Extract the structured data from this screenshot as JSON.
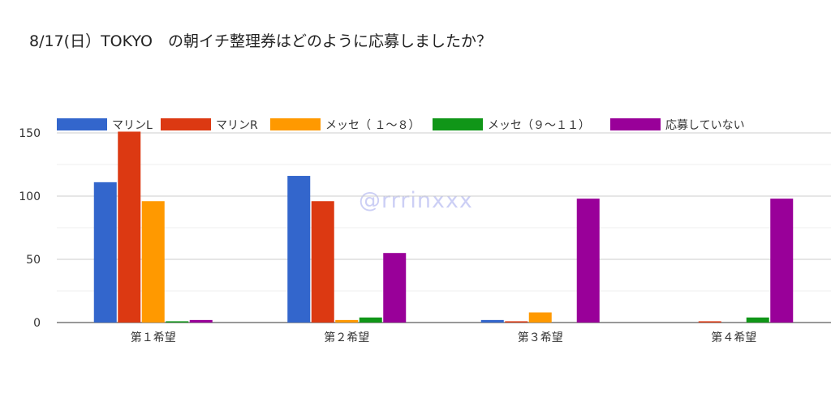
{
  "title": "8/17(日）TOKYO　の朝イチ整理券はどのように応募しましたか？",
  "watermark": "@rrrinxxx",
  "chart_data": {
    "type": "bar",
    "categories": [
      "第１希望",
      "第２希望",
      "第３希望",
      "第４希望"
    ],
    "series": [
      {
        "name": "マリンL",
        "color": "#3366cc",
        "values": [
          111,
          116,
          2,
          0
        ]
      },
      {
        "name": "マリンR",
        "color": "#dc3912",
        "values": [
          151,
          96,
          1,
          1
        ]
      },
      {
        "name": "メッセ（ １〜８）",
        "color": "#ff9900",
        "values": [
          96,
          2,
          8,
          0
        ]
      },
      {
        "name": "メッセ（９〜１１）",
        "color": "#109618",
        "values": [
          1,
          4,
          0,
          4
        ]
      },
      {
        "name": "応募していない",
        "color": "#990099",
        "values": [
          2,
          55,
          98,
          98
        ]
      }
    ],
    "ylim": [
      0,
      150
    ],
    "yticks": [
      0,
      50,
      100,
      150
    ],
    "grid": true,
    "legend_position": "top"
  }
}
